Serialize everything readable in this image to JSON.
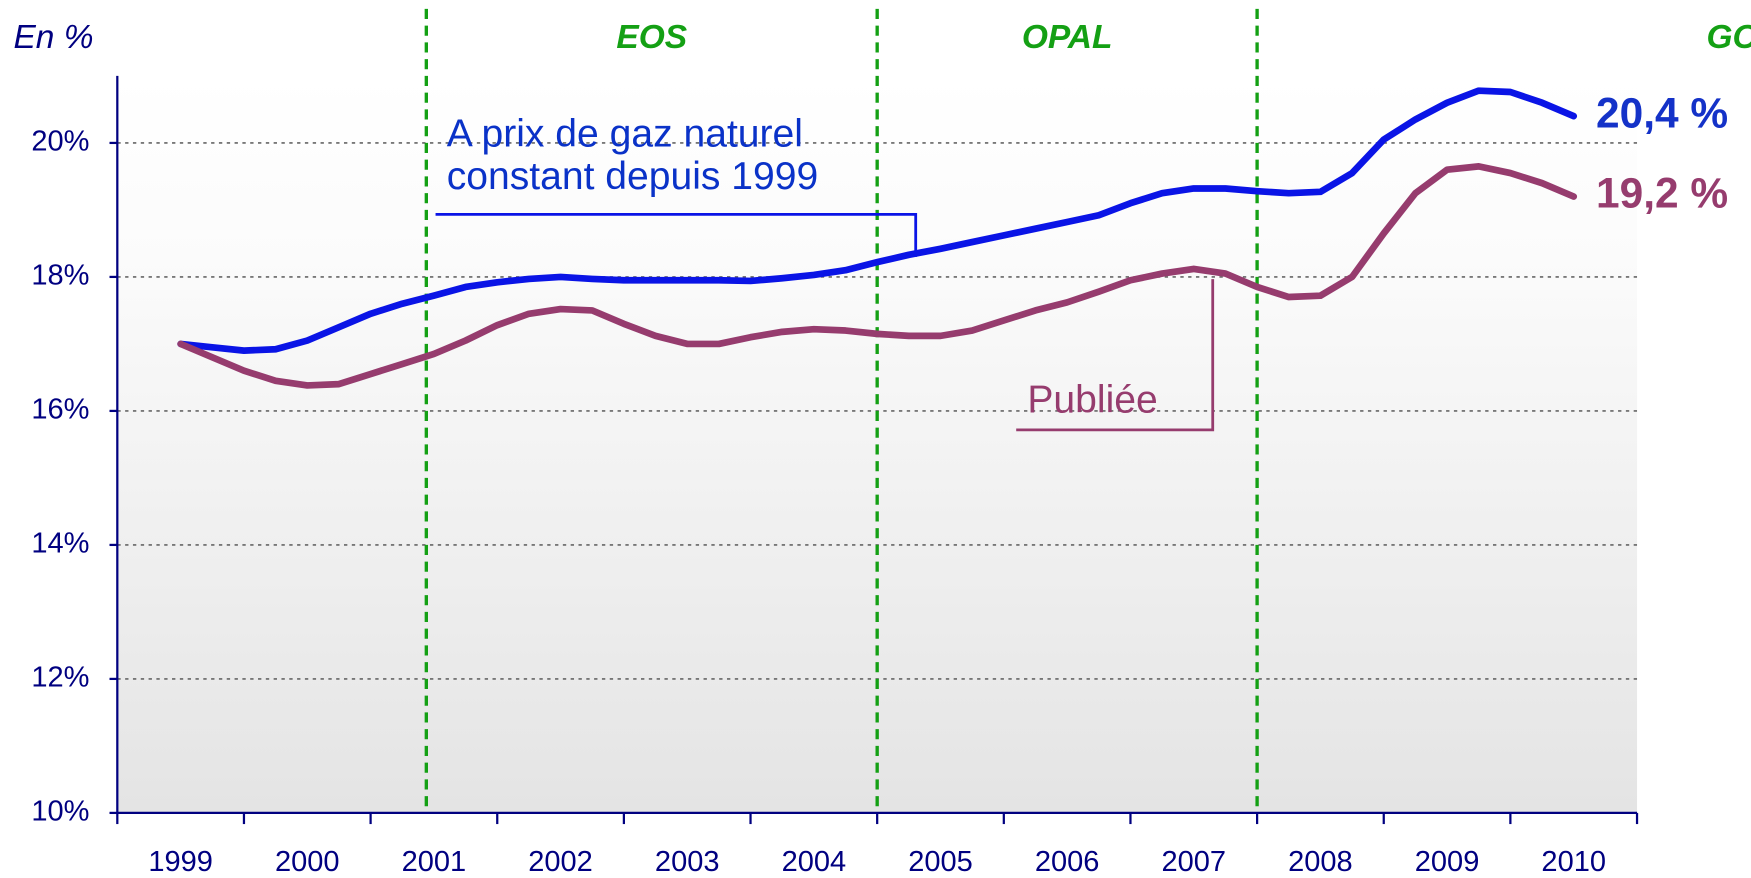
{
  "chart_data": {
    "type": "line",
    "y_axis_title": "En %",
    "categories": [
      "1999",
      "2000",
      "2001",
      "2002",
      "2003",
      "2004",
      "2005",
      "2006",
      "2007",
      "2008",
      "2009",
      "2010"
    ],
    "x": [
      1999.5,
      1999.75,
      2000,
      2000.25,
      2000.5,
      2000.75,
      2001,
      2001.25,
      2001.5,
      2001.75,
      2002,
      2002.25,
      2002.5,
      2002.75,
      2003,
      2003.25,
      2003.5,
      2003.75,
      2004,
      2004.25,
      2004.5,
      2004.75,
      2005,
      2005.25,
      2005.5,
      2005.75,
      2006,
      2006.25,
      2006.5,
      2006.75,
      2007,
      2007.25,
      2007.5,
      2007.75,
      2008,
      2008.25,
      2008.5,
      2008.75,
      2009,
      2009.25,
      2009.5,
      2009.75,
      2010,
      2010.25,
      2010.5
    ],
    "xlim": [
      1999,
      2011
    ],
    "ylim": [
      10,
      21
    ],
    "yticks": [
      {
        "value": 10,
        "label": "10%"
      },
      {
        "value": 12,
        "label": "12%"
      },
      {
        "value": 14,
        "label": "14%"
      },
      {
        "value": 16,
        "label": "16%"
      },
      {
        "value": 18,
        "label": "18%"
      },
      {
        "value": 20,
        "label": "20%"
      }
    ],
    "grid": true,
    "series": [
      {
        "name": "A prix de gaz naturel constant depuis 1999",
        "color": "#0a14e6",
        "end_label": "20,4 %",
        "end_label_color": "#1432c8",
        "values": [
          17.0,
          16.95,
          16.9,
          16.92,
          17.05,
          17.25,
          17.45,
          17.6,
          17.72,
          17.85,
          17.92,
          17.97,
          18.0,
          17.97,
          17.95,
          17.95,
          17.95,
          17.95,
          17.94,
          17.98,
          18.03,
          18.1,
          18.22,
          18.33,
          18.42,
          18.52,
          18.62,
          18.72,
          18.82,
          18.92,
          19.1,
          19.25,
          19.32,
          19.32,
          19.28,
          19.25,
          19.27,
          19.55,
          20.05,
          20.35,
          20.6,
          20.78,
          20.76,
          20.6,
          20.4
        ]
      },
      {
        "name": "Publiée",
        "color": "#963c6e",
        "end_label": "19,2 %",
        "end_label_color": "#963c6e",
        "values": [
          17.0,
          16.8,
          16.6,
          16.45,
          16.38,
          16.4,
          16.55,
          16.7,
          16.85,
          17.05,
          17.28,
          17.45,
          17.52,
          17.5,
          17.3,
          17.12,
          17.0,
          17.0,
          17.1,
          17.18,
          17.22,
          17.2,
          17.15,
          17.12,
          17.12,
          17.2,
          17.35,
          17.5,
          17.62,
          17.78,
          17.95,
          18.05,
          18.12,
          18.05,
          17.85,
          17.7,
          17.72,
          18.0,
          18.65,
          19.25,
          19.6,
          19.65,
          19.55,
          19.4,
          19.2
        ]
      }
    ],
    "annotations": [
      [
        "A prix de gaz naturel",
        "constant depuis 1999"
      ],
      [
        "Publiée"
      ]
    ],
    "phases": {
      "color": "#14a014",
      "boundaries": [
        2001.44,
        2005,
        2008
      ],
      "names": [
        "EOS",
        "OPAL",
        "GOAL"
      ]
    }
  }
}
